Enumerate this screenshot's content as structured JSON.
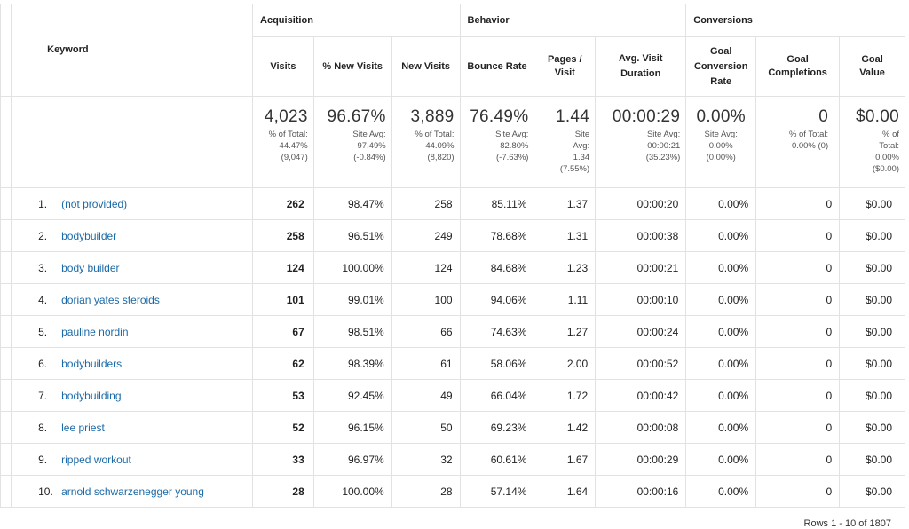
{
  "groups": {
    "acquisition": "Acquisition",
    "behavior": "Behavior",
    "conversions": "Conversions"
  },
  "columns": {
    "keyword": "Keyword",
    "visits": "Visits",
    "pct_new_visits": "% New Visits",
    "new_visits": "New Visits",
    "bounce_rate": "Bounce Rate",
    "pages_visit_1": "Pages /",
    "pages_visit_2": "Visit",
    "avg_visit_duration_1": "Avg. Visit",
    "avg_visit_duration_2": "Duration",
    "goal_conv_1": "Goal",
    "goal_conv_2": "Conversion",
    "goal_conv_3": "Rate",
    "goal_compl_1": "Goal",
    "goal_compl_2": "Completions",
    "goal_value_1": "Goal",
    "goal_value_2": "Value"
  },
  "totals": {
    "visits": {
      "big": "4,023",
      "l1": "% of Total:",
      "l2": "44.47%",
      "l3": "(9,047)"
    },
    "pct_new_visits": {
      "big": "96.67%",
      "l1": "Site Avg:",
      "l2": "97.49%",
      "l3": "(-0.84%)"
    },
    "new_visits": {
      "big": "3,889",
      "l1": "% of Total:",
      "l2": "44.09%",
      "l3": "(8,820)"
    },
    "bounce_rate": {
      "big": "76.49%",
      "l1": "Site Avg:",
      "l2": "82.80%",
      "l3": "(-7.63%)"
    },
    "pages_visit": {
      "big": "1.44",
      "l1": "Site",
      "l2": "Avg:",
      "l3": "1.34",
      "l4": "(7.55%)"
    },
    "avg_visit_duration": {
      "big": "00:00:29",
      "l1": "Site Avg:",
      "l2": "00:00:21",
      "l3": "(35.23%)"
    },
    "goal_conv_rate": {
      "big": "0.00%",
      "l1": "Site Avg:",
      "l2": "0.00%",
      "l3": "(0.00%)"
    },
    "goal_completions": {
      "big": "0",
      "l1": "% of Total:",
      "l2": "0.00% (0)"
    },
    "goal_value": {
      "big": "$0.00",
      "l1": "% of",
      "l2": "Total:",
      "l3": "0.00%",
      "l4": "($0.00)"
    }
  },
  "rows": [
    {
      "index": "1.",
      "keyword": "(not provided)",
      "visits": "262",
      "pct_new": "98.47%",
      "new_visits": "258",
      "bounce": "85.11%",
      "pages": "1.37",
      "duration": "00:00:20",
      "conv_rate": "0.00%",
      "completions": "0",
      "value": "$0.00"
    },
    {
      "index": "2.",
      "keyword": "bodybuilder",
      "visits": "258",
      "pct_new": "96.51%",
      "new_visits": "249",
      "bounce": "78.68%",
      "pages": "1.31",
      "duration": "00:00:38",
      "conv_rate": "0.00%",
      "completions": "0",
      "value": "$0.00"
    },
    {
      "index": "3.",
      "keyword": "body builder",
      "visits": "124",
      "pct_new": "100.00%",
      "new_visits": "124",
      "bounce": "84.68%",
      "pages": "1.23",
      "duration": "00:00:21",
      "conv_rate": "0.00%",
      "completions": "0",
      "value": "$0.00"
    },
    {
      "index": "4.",
      "keyword": "dorian yates steroids",
      "visits": "101",
      "pct_new": "99.01%",
      "new_visits": "100",
      "bounce": "94.06%",
      "pages": "1.11",
      "duration": "00:00:10",
      "conv_rate": "0.00%",
      "completions": "0",
      "value": "$0.00"
    },
    {
      "index": "5.",
      "keyword": "pauline nordin",
      "visits": "67",
      "pct_new": "98.51%",
      "new_visits": "66",
      "bounce": "74.63%",
      "pages": "1.27",
      "duration": "00:00:24",
      "conv_rate": "0.00%",
      "completions": "0",
      "value": "$0.00"
    },
    {
      "index": "6.",
      "keyword": "bodybuilders",
      "visits": "62",
      "pct_new": "98.39%",
      "new_visits": "61",
      "bounce": "58.06%",
      "pages": "2.00",
      "duration": "00:00:52",
      "conv_rate": "0.00%",
      "completions": "0",
      "value": "$0.00"
    },
    {
      "index": "7.",
      "keyword": "bodybuilding",
      "visits": "53",
      "pct_new": "92.45%",
      "new_visits": "49",
      "bounce": "66.04%",
      "pages": "1.72",
      "duration": "00:00:42",
      "conv_rate": "0.00%",
      "completions": "0",
      "value": "$0.00"
    },
    {
      "index": "8.",
      "keyword": "lee priest",
      "visits": "52",
      "pct_new": "96.15%",
      "new_visits": "50",
      "bounce": "69.23%",
      "pages": "1.42",
      "duration": "00:00:08",
      "conv_rate": "0.00%",
      "completions": "0",
      "value": "$0.00"
    },
    {
      "index": "9.",
      "keyword": "ripped workout",
      "visits": "33",
      "pct_new": "96.97%",
      "new_visits": "32",
      "bounce": "60.61%",
      "pages": "1.67",
      "duration": "00:00:29",
      "conv_rate": "0.00%",
      "completions": "0",
      "value": "$0.00"
    },
    {
      "index": "10.",
      "keyword": "arnold schwarzenegger young",
      "visits": "28",
      "pct_new": "100.00%",
      "new_visits": "28",
      "bounce": "57.14%",
      "pages": "1.64",
      "duration": "00:00:16",
      "conv_rate": "0.00%",
      "completions": "0",
      "value": "$0.00"
    }
  ],
  "footer": {
    "rows_info": "Rows 1 - 10 of 1807"
  },
  "colors": {
    "link": "#1a6aa8",
    "border": "#e2e2e2"
  }
}
